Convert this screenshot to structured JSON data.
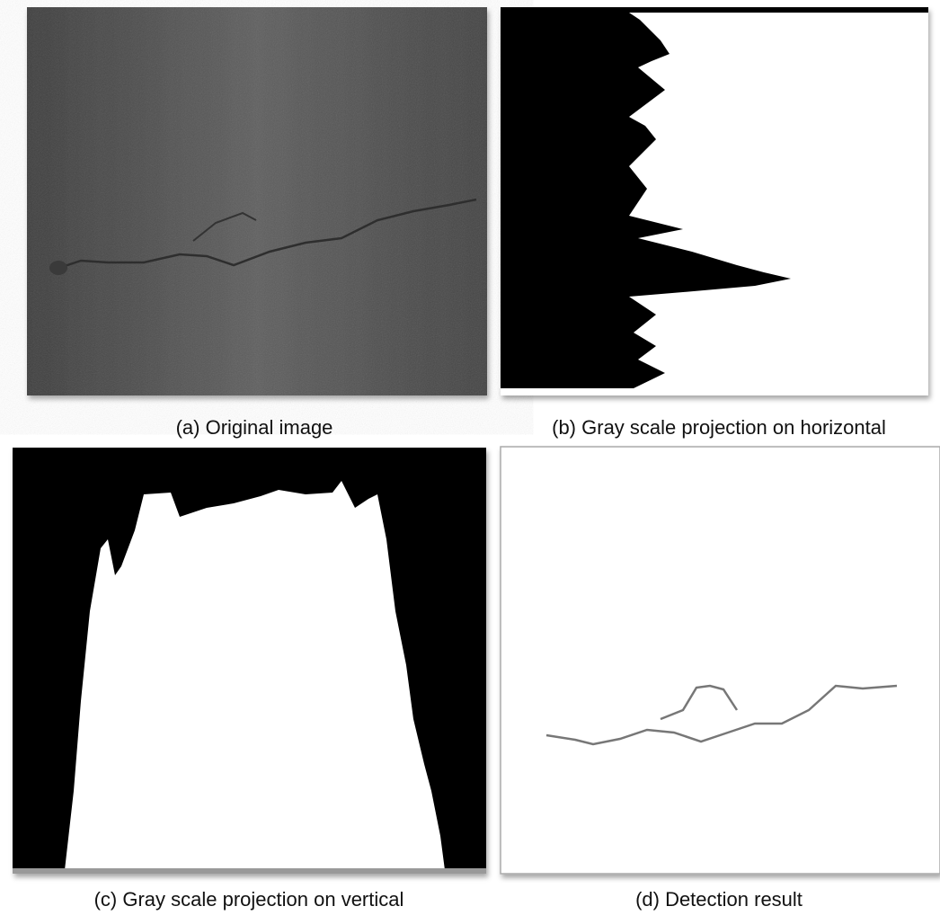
{
  "panels": [
    {
      "caption": "(a) Original image"
    },
    {
      "caption": "(b) Gray scale projection on horizontal"
    },
    {
      "caption": "(c) Gray scale projection on vertical"
    },
    {
      "caption": "(d) Detection result"
    }
  ]
}
